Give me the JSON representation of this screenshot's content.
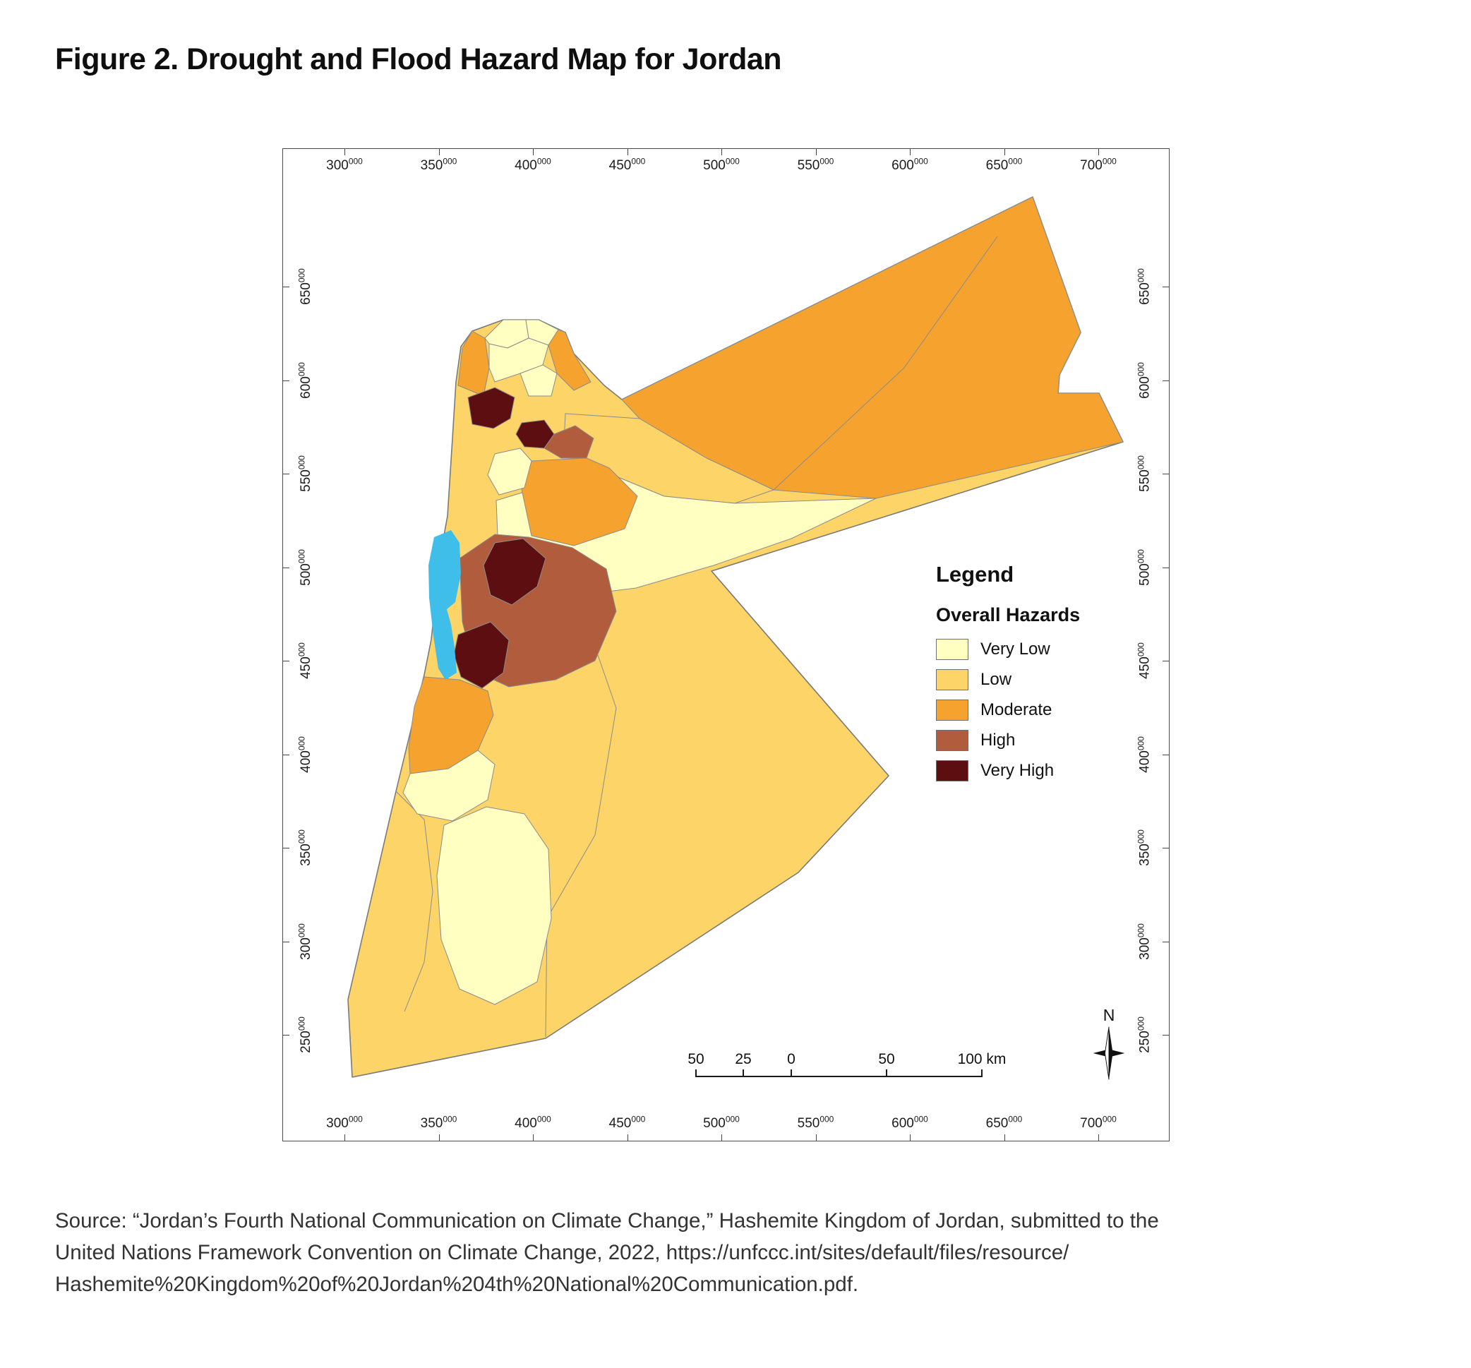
{
  "figure": {
    "title": "Figure 2. Drought and Flood Hazard Map for Jordan"
  },
  "map": {
    "axis": {
      "x_tick_labels": [
        {
          "base": "300",
          "sup": "000"
        },
        {
          "base": "350",
          "sup": "000"
        },
        {
          "base": "400",
          "sup": "000"
        },
        {
          "base": "450",
          "sup": "000"
        },
        {
          "base": "500",
          "sup": "000"
        },
        {
          "base": "550",
          "sup": "000"
        },
        {
          "base": "600",
          "sup": "000"
        },
        {
          "base": "650",
          "sup": "000"
        },
        {
          "base": "700",
          "sup": "000"
        }
      ],
      "y_tick_labels": [
        {
          "base": "650",
          "sup": "000"
        },
        {
          "base": "600",
          "sup": "000"
        },
        {
          "base": "550",
          "sup": "000"
        },
        {
          "base": "500",
          "sup": "000"
        },
        {
          "base": "450",
          "sup": "000"
        },
        {
          "base": "400",
          "sup": "000"
        },
        {
          "base": "350",
          "sup": "000"
        },
        {
          "base": "300",
          "sup": "000"
        },
        {
          "base": "250",
          "sup": "000"
        }
      ]
    },
    "legend": {
      "title": "Legend",
      "subtitle": "Overall Hazards",
      "items": [
        {
          "key": "vlow",
          "label": "Very Low",
          "color": "#FFFFC2"
        },
        {
          "key": "low",
          "label": "Low",
          "color": "#FCD467"
        },
        {
          "key": "mod",
          "label": "Moderate",
          "color": "#F5A22E"
        },
        {
          "key": "high",
          "label": "High",
          "color": "#B05C3D"
        },
        {
          "key": "vhigh",
          "label": "Very High",
          "color": "#5C0E10"
        }
      ],
      "water_color": "#3EBEE8",
      "boundary_color": "#8C8C8C"
    },
    "scale_bar": {
      "labels": [
        "50",
        "25",
        "0",
        "50",
        "100 km"
      ]
    },
    "north_arrow_label": "N"
  },
  "source": {
    "lines": [
      "Source: “Jordan’s Fourth National Communication on Climate Change,” Hashemite Kingdom of Jordan, submitted to the",
      "United Nations Framework Convention on Climate Change, 2022, https://unfccc.int/sites/default/files/resource/",
      "Hashemite%20Kingdom%20of%20Jordan%204th%20National%20Communication.pdf."
    ]
  }
}
